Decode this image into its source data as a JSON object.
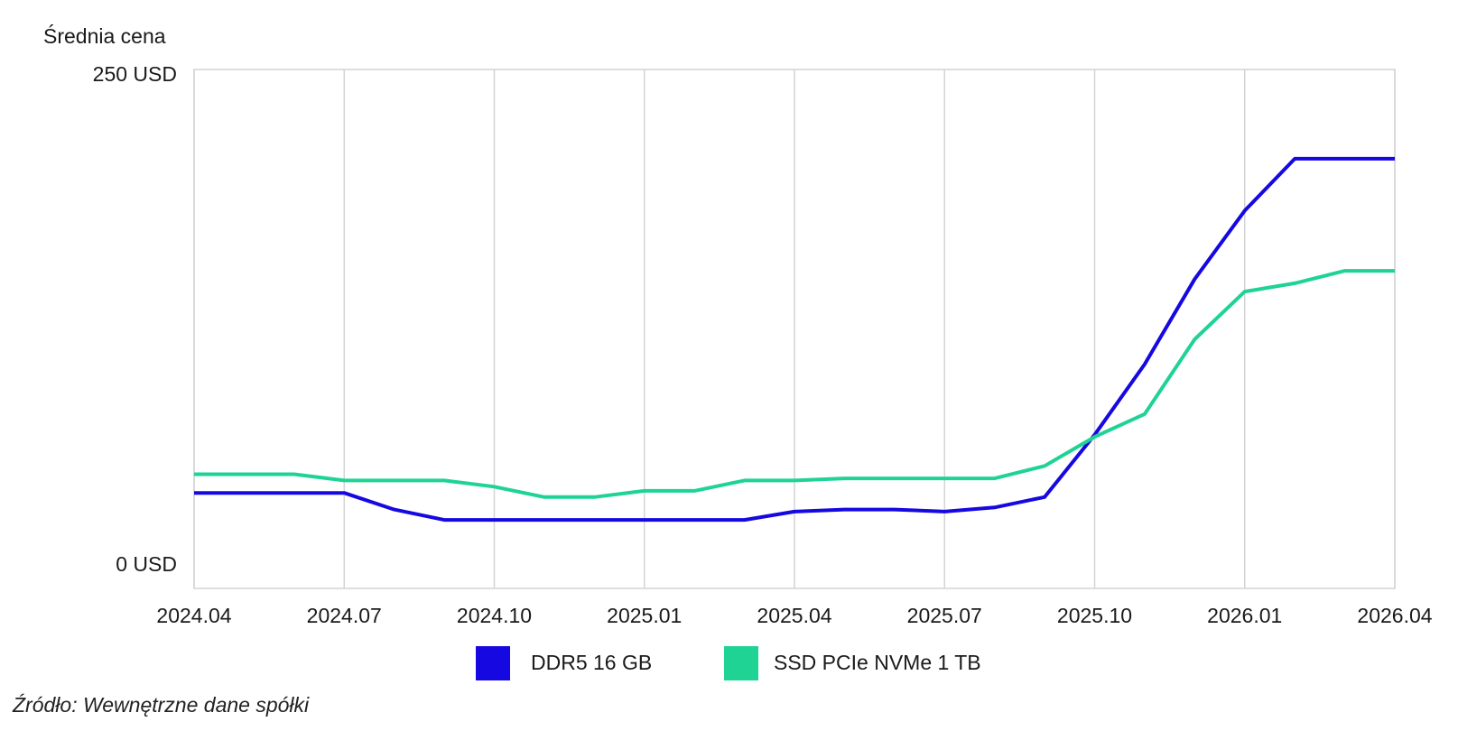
{
  "chart_data": {
    "type": "line",
    "ylabel": "Średnia cena",
    "y_tick_labels": [
      "250 USD",
      "0 USD"
    ],
    "ylim": [
      0,
      250
    ],
    "x_tick_labels": [
      "2024.04",
      "2024.07",
      "2024.10",
      "2025.01",
      "2025.04",
      "2025.07",
      "2025.10",
      "2026.01",
      "2026.04"
    ],
    "x": [
      "2024.04",
      "2024.05",
      "2024.06",
      "2024.07",
      "2024.08",
      "2024.09",
      "2024.10",
      "2024.11",
      "2024.12",
      "2025.01",
      "2025.02",
      "2025.03",
      "2025.04",
      "2025.05",
      "2025.06",
      "2025.07",
      "2025.08",
      "2025.09",
      "2025.10",
      "2025.11",
      "2025.12",
      "2026.01",
      "2026.02",
      "2026.03",
      "2026.04"
    ],
    "series": [
      {
        "name": "DDR5 16 GB",
        "color": "#1508e0",
        "values": [
          46,
          46,
          46,
          46,
          38,
          33,
          33,
          33,
          33,
          33,
          33,
          33,
          37,
          38,
          38,
          37,
          39,
          44,
          74,
          108,
          149,
          182,
          207,
          207,
          207
        ]
      },
      {
        "name": "SSD PCIe NVMe 1 TB",
        "color": "#1ed394",
        "values": [
          55,
          55,
          55,
          52,
          52,
          52,
          49,
          44,
          44,
          47,
          47,
          52,
          52,
          53,
          53,
          53,
          53,
          59,
          73,
          84,
          120,
          143,
          147,
          153,
          153
        ]
      }
    ],
    "grid": "vertical",
    "legend": "bottom-center"
  },
  "source": "Źródło: Wewnętrzne dane spółki"
}
